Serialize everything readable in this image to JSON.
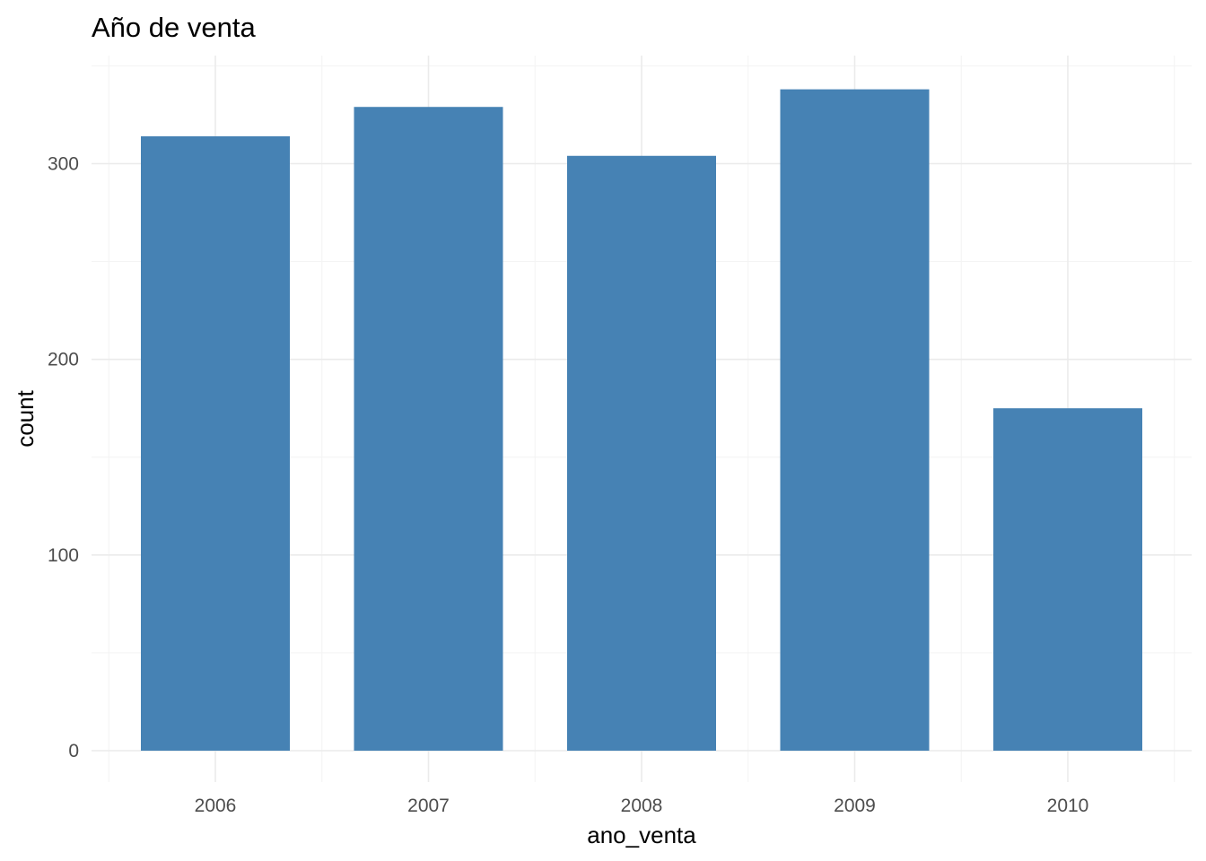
{
  "chart_data": {
    "type": "bar",
    "title": "Año de venta",
    "xlabel": "ano_venta",
    "ylabel": "count",
    "categories": [
      "2006",
      "2007",
      "2008",
      "2009",
      "2010"
    ],
    "values": [
      314,
      329,
      304,
      338,
      175
    ],
    "ylim": [
      0,
      350
    ],
    "yticks": [
      0,
      100,
      200,
      300
    ],
    "grid": true,
    "legend": "none",
    "bar_color": "#4682b4"
  }
}
